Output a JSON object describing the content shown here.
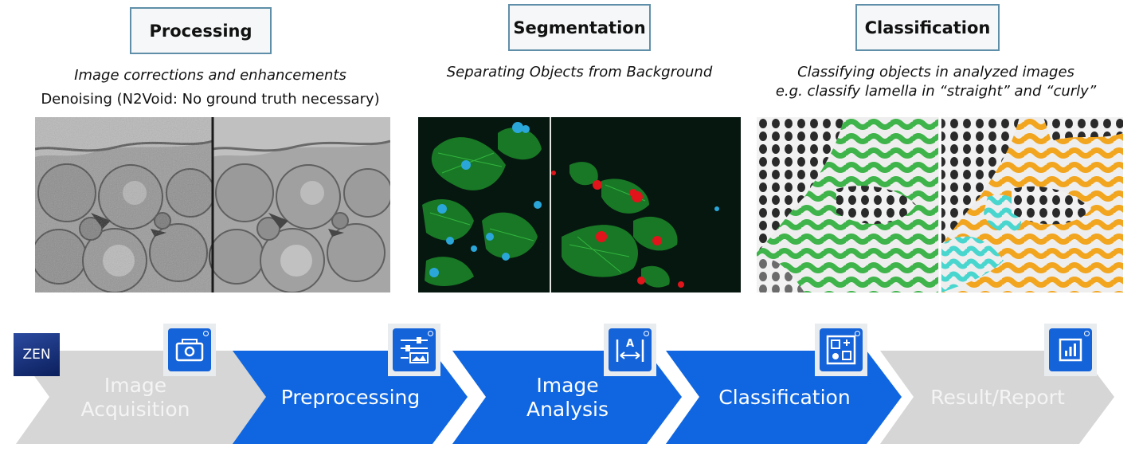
{
  "sections": [
    {
      "title": "Processing",
      "subtitle": "Image corrections and enhancements",
      "note": "Denoising (N2Void: No ground truth necessary)"
    },
    {
      "title": "Segmentation",
      "subtitle": "Separating Objects from Background"
    },
    {
      "title": "Classification",
      "subtitle": "Classifying objects in analyzed images",
      "subtitle2": "e.g. classify lamella in “straight” and “curly”"
    }
  ],
  "logo": {
    "text": "ZEN"
  },
  "pipeline": {
    "steps": [
      {
        "label_line1": "Image",
        "label_line2": "Acquisition",
        "state": "inactive",
        "icon": "camera-icon"
      },
      {
        "label_line1": "Preprocessing",
        "state": "active",
        "icon": "sliders-image-icon"
      },
      {
        "label_line1": "Image",
        "label_line2": "Analysis",
        "state": "active",
        "icon": "measure-icon"
      },
      {
        "label_line1": "Classification",
        "state": "active",
        "icon": "classification-grid-icon"
      },
      {
        "label_line1": "Result/Report",
        "state": "inactive",
        "icon": "report-chart-icon"
      }
    ],
    "colors": {
      "active": "#0f66e0",
      "inactive": "#d6d6d6"
    }
  },
  "icon_glyphs": {
    "measure_letter": "A"
  }
}
